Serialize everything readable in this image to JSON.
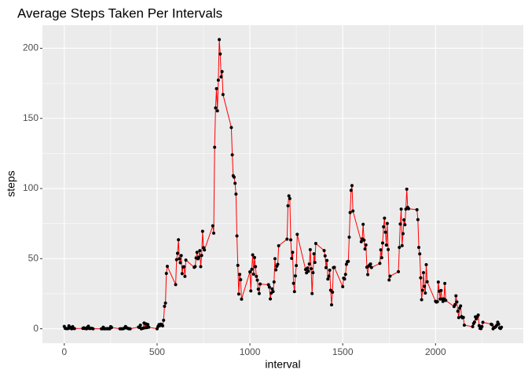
{
  "chart_data": {
    "type": "line",
    "title": "Average Steps Taken Per Intervals",
    "x_label": "interval",
    "y_label": "steps",
    "x": [
      0,
      5,
      10,
      15,
      20,
      25,
      30,
      35,
      40,
      45,
      50,
      55,
      100,
      105,
      110,
      115,
      120,
      125,
      130,
      135,
      140,
      145,
      150,
      155,
      200,
      205,
      210,
      215,
      220,
      225,
      230,
      235,
      240,
      245,
      250,
      255,
      300,
      305,
      310,
      315,
      320,
      325,
      330,
      335,
      340,
      345,
      350,
      355,
      400,
      405,
      410,
      415,
      420,
      425,
      430,
      435,
      440,
      445,
      450,
      455,
      500,
      505,
      510,
      515,
      520,
      525,
      530,
      535,
      540,
      545,
      550,
      555,
      600,
      605,
      610,
      615,
      620,
      625,
      630,
      635,
      640,
      645,
      650,
      655,
      700,
      705,
      710,
      715,
      720,
      725,
      730,
      735,
      740,
      745,
      750,
      755,
      800,
      805,
      810,
      815,
      820,
      825,
      830,
      835,
      840,
      845,
      850,
      855,
      900,
      905,
      910,
      915,
      920,
      925,
      930,
      935,
      940,
      945,
      950,
      955,
      1000,
      1005,
      1010,
      1015,
      1020,
      1025,
      1030,
      1035,
      1040,
      1045,
      1050,
      1055,
      1100,
      1105,
      1110,
      1115,
      1120,
      1125,
      1130,
      1135,
      1140,
      1145,
      1150,
      1155,
      1200,
      1205,
      1210,
      1215,
      1220,
      1225,
      1230,
      1235,
      1240,
      1245,
      1250,
      1255,
      1300,
      1305,
      1310,
      1315,
      1320,
      1325,
      1330,
      1335,
      1340,
      1345,
      1350,
      1355,
      1400,
      1405,
      1410,
      1415,
      1420,
      1425,
      1430,
      1435,
      1440,
      1445,
      1450,
      1455,
      1500,
      1505,
      1510,
      1515,
      1520,
      1525,
      1530,
      1535,
      1540,
      1545,
      1550,
      1555,
      1600,
      1605,
      1610,
      1615,
      1620,
      1625,
      1630,
      1635,
      1640,
      1645,
      1650,
      1655,
      1700,
      1705,
      1710,
      1715,
      1720,
      1725,
      1730,
      1735,
      1740,
      1745,
      1750,
      1755,
      1800,
      1805,
      1810,
      1815,
      1820,
      1825,
      1830,
      1835,
      1840,
      1845,
      1850,
      1855,
      1900,
      1905,
      1910,
      1915,
      1920,
      1925,
      1930,
      1935,
      1940,
      1945,
      1950,
      1955,
      2000,
      2005,
      2010,
      2015,
      2020,
      2025,
      2030,
      2035,
      2040,
      2045,
      2050,
      2055,
      2100,
      2105,
      2110,
      2115,
      2120,
      2125,
      2130,
      2135,
      2140,
      2145,
      2150,
      2155,
      2200,
      2205,
      2210,
      2215,
      2220,
      2225,
      2230,
      2235,
      2240,
      2245,
      2250,
      2255,
      2300,
      2305,
      2310,
      2315,
      2320,
      2325,
      2330,
      2335,
      2340,
      2345,
      2350,
      2355
    ],
    "series": [
      {
        "color": "#ff0000",
        "values": [
          1.7,
          0.3,
          0.1,
          0.2,
          0.1,
          2.1,
          0.5,
          0.9,
          0,
          1.5,
          0.3,
          0.1,
          0.3,
          0.7,
          0.2,
          0.3,
          0,
          1.1,
          1.8,
          0.2,
          0.2,
          0.4,
          0.3,
          0,
          0,
          0,
          1.1,
          0,
          0,
          0.1,
          0,
          0.2,
          0,
          0,
          1.5,
          0.9,
          0,
          0,
          0,
          0,
          0.2,
          0.6,
          1.6,
          0.6,
          0.5,
          0.1,
          0,
          0,
          1.2,
          0.9,
          2.6,
          0,
          0.3,
          0.4,
          4.1,
          0.7,
          3.5,
          0.8,
          3.1,
          1.1,
          0,
          1.6,
          3,
          2.2,
          3.3,
          3,
          2.1,
          6.1,
          16,
          18.3,
          39.5,
          44.5,
          31.5,
          49.3,
          53.8,
          63.5,
          50,
          47.1,
          52.2,
          39.3,
          44,
          44.2,
          37.4,
          49,
          43.8,
          44.4,
          50.5,
          54.5,
          49.9,
          51,
          55.7,
          44.3,
          52.3,
          69.5,
          57.8,
          56.2,
          73.4,
          68.2,
          129.4,
          157.5,
          171.2,
          155.4,
          177.3,
          206.2,
          195.9,
          179.6,
          183.4,
          167,
          143.5,
          124,
          109.1,
          108.1,
          103.7,
          96,
          66.2,
          45.2,
          24.8,
          38.8,
          35,
          21.1,
          40.6,
          27,
          42.4,
          52.7,
          38.9,
          50.8,
          44.3,
          37.4,
          34.7,
          28.3,
          25.1,
          31.9,
          31.4,
          29.7,
          21.3,
          25.5,
          28.4,
          26.5,
          33.4,
          50,
          42,
          44.6,
          46,
          59.2,
          63.9,
          87.7,
          94.8,
          92.8,
          63.4,
          50.2,
          54.5,
          32.4,
          26.5,
          37.7,
          45.1,
          67.3,
          42.3,
          39.9,
          43.3,
          41,
          46.2,
          56.4,
          42.8,
          25.1,
          40,
          53.5,
          47.3,
          60.8,
          55.8,
          52,
          43.6,
          48.7,
          35.5,
          37.5,
          41.8,
          27.5,
          17.1,
          26.1,
          43.6,
          43.8,
          30,
          36.1,
          35.5,
          38.8,
          46,
          47.8,
          48.1,
          65.3,
          82.9,
          98.7,
          102.1,
          84,
          62.1,
          64.1,
          74.5,
          63.2,
          56.9,
          59.8,
          43.9,
          38.6,
          44.7,
          45.5,
          46.2,
          43.7,
          46.6,
          56.3,
          50.7,
          61.2,
          72.7,
          78.9,
          68.9,
          59.7,
          75.1,
          56.5,
          34.8,
          37.5,
          40.7,
          58,
          74.7,
          85.3,
          59.3,
          67.8,
          77.7,
          74.2,
          85.3,
          99.5,
          86.6,
          85.6,
          84.9,
          77.8,
          58,
          53.4,
          36.3,
          20.7,
          27.4,
          40,
          30.2,
          25.5,
          45.7,
          33.5,
          19.6,
          19,
          19.3,
          33.3,
          26.8,
          21.2,
          27.3,
          21.3,
          19.5,
          21.3,
          32.3,
          20.2,
          15.9,
          17.2,
          23.5,
          19.2,
          12.5,
          8,
          14.7,
          16.3,
          8.7,
          7.8,
          8.1,
          2.6,
          1.5,
          3.7,
          4.8,
          8.5,
          7.1,
          8.7,
          9.8,
          2.2,
          0.3,
          0.1,
          1.6,
          4.6,
          3.3,
          2.8,
          0,
          0.8,
          1,
          1.6,
          2.6,
          4.7,
          3.3,
          0.6,
          0.2,
          1.1
        ]
      }
    ],
    "marker_color": "#000000",
    "xlim": [
      -117.75,
      2472.75
    ],
    "xticks": [
      0,
      500,
      1000,
      1500,
      2000
    ],
    "xminor_ticks": [
      250,
      750,
      1250,
      1750,
      2250
    ],
    "ylim": [
      -10.3,
      216.5
    ],
    "yticks": [
      0,
      50,
      100,
      150,
      200
    ],
    "yminor_ticks": [
      25,
      75,
      125,
      175
    ],
    "grid": true
  }
}
